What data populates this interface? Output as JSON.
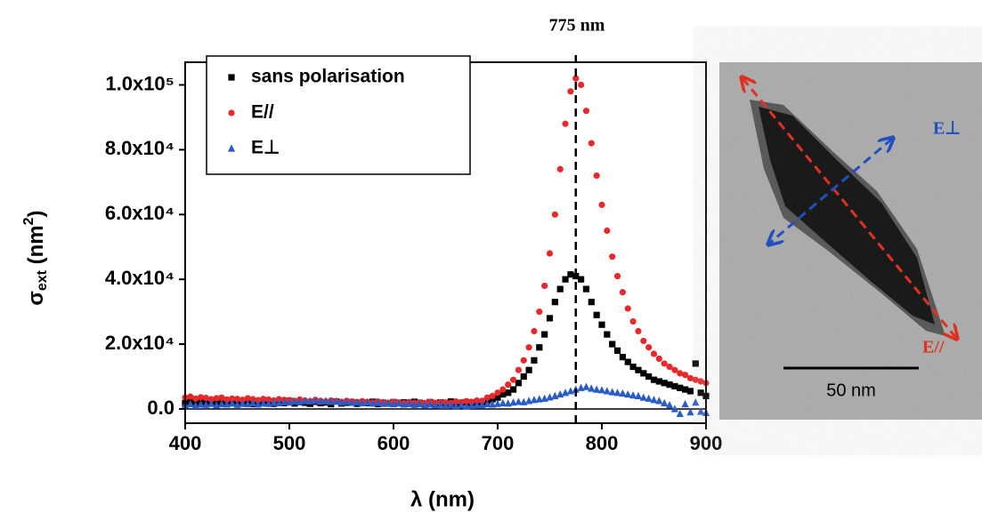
{
  "chart_data": {
    "type": "scatter",
    "x_label": "λ (nm)",
    "y_label_parts": [
      "σ",
      "ext",
      " (nm",
      "2",
      ")"
    ],
    "annotation": {
      "text": "775 nm",
      "x": 775
    },
    "xlim": [
      400,
      900
    ],
    "xticks": [
      400,
      500,
      600,
      700,
      800,
      900
    ],
    "ylim": [
      -4400,
      107000
    ],
    "yticks": [
      {
        "value": 0,
        "label": "0.0"
      },
      {
        "value": 20000,
        "label": "2.0x10⁴"
      },
      {
        "value": 40000,
        "label": "4.0x10⁴"
      },
      {
        "value": 60000,
        "label": "6.0x10⁴"
      },
      {
        "value": 80000,
        "label": "8.0x10⁴"
      },
      {
        "value": 100000,
        "label": "1.0x10⁵"
      }
    ],
    "legend": "top-left",
    "x": [
      400,
      405,
      410,
      415,
      420,
      425,
      430,
      435,
      440,
      445,
      450,
      455,
      460,
      465,
      470,
      475,
      480,
      485,
      490,
      495,
      500,
      505,
      510,
      515,
      520,
      525,
      530,
      535,
      540,
      545,
      550,
      555,
      560,
      565,
      570,
      575,
      580,
      585,
      590,
      595,
      600,
      605,
      610,
      615,
      620,
      625,
      630,
      635,
      640,
      645,
      650,
      655,
      660,
      665,
      670,
      675,
      680,
      685,
      690,
      695,
      700,
      705,
      710,
      715,
      720,
      725,
      730,
      735,
      740,
      745,
      750,
      755,
      760,
      765,
      770,
      775,
      780,
      785,
      790,
      795,
      800,
      805,
      810,
      815,
      820,
      825,
      830,
      835,
      840,
      845,
      850,
      855,
      860,
      865,
      870,
      875,
      880,
      885,
      890,
      895,
      900
    ],
    "series": [
      {
        "name": "sans polarisation",
        "color": "#000000",
        "marker": "square",
        "values": [
          1800,
          2200,
          1500,
          2000,
          1700,
          2300,
          1900,
          1600,
          2100,
          1800,
          2400,
          1700,
          2000,
          1500,
          2200,
          1900,
          2300,
          1600,
          2000,
          1800,
          2500,
          1700,
          2100,
          1900,
          1600,
          2200,
          1800,
          2000,
          1500,
          2300,
          1700,
          1900,
          2100,
          1600,
          2000,
          1800,
          2200,
          1500,
          1900,
          1700,
          2100,
          1800,
          2000,
          1600,
          2200,
          1900,
          1500,
          2100,
          1700,
          2000,
          1800,
          2300,
          1600,
          1900,
          2100,
          1700,
          2000,
          2000,
          2500,
          3000,
          3500,
          4500,
          5000,
          6000,
          8000,
          10000,
          12000,
          15000,
          19000,
          23000,
          28000,
          33000,
          37000,
          40000,
          41500,
          41000,
          40000,
          37000,
          33000,
          29000,
          26000,
          23000,
          20000,
          18000,
          16000,
          14500,
          13000,
          12000,
          11000,
          10000,
          9000,
          8500,
          8000,
          7500,
          7000,
          6500,
          6000,
          5500,
          14000,
          5000,
          4000
        ]
      },
      {
        "name": "E//",
        "color": "#e8282a",
        "marker": "circle",
        "values": [
          3500,
          3800,
          3200,
          3600,
          3400,
          3000,
          3300,
          3500,
          2900,
          3200,
          3100,
          2800,
          3300,
          3000,
          2700,
          3100,
          2900,
          2600,
          3000,
          2800,
          2700,
          2500,
          2900,
          2600,
          2400,
          2800,
          2500,
          2300,
          2600,
          2400,
          2200,
          2500,
          2300,
          2100,
          2400,
          2200,
          2000,
          2300,
          2100,
          1900,
          2200,
          2000,
          1800,
          2100,
          1900,
          2000,
          1800,
          2200,
          1900,
          2100,
          2000,
          1800,
          2300,
          2100,
          2400,
          2200,
          2600,
          2500,
          3500,
          4000,
          5000,
          6000,
          7500,
          9000,
          12000,
          15000,
          19000,
          24000,
          30000,
          38000,
          48000,
          60000,
          74000,
          88000,
          98000,
          102000,
          100000,
          92000,
          82000,
          72000,
          63000,
          55000,
          47000,
          41000,
          36000,
          31000,
          27000,
          24000,
          21000,
          19000,
          17000,
          15500,
          14000,
          13000,
          12000,
          11000,
          10500,
          9500,
          9000,
          8500,
          8000
        ]
      },
      {
        "name": "E⊥",
        "color": "#2a5cc8",
        "marker": "triangle",
        "values": [
          1200,
          1500,
          1000,
          1400,
          1300,
          1600,
          1100,
          1500,
          1400,
          1700,
          1300,
          1600,
          1500,
          1800,
          1400,
          1700,
          1600,
          1900,
          1800,
          2100,
          2000,
          2300,
          2200,
          2500,
          2400,
          2600,
          2300,
          2500,
          2200,
          2400,
          2000,
          2200,
          1900,
          2100,
          1800,
          2000,
          1700,
          1900,
          1600,
          1800,
          1500,
          1700,
          1400,
          1600,
          1300,
          1500,
          1200,
          1400,
          1100,
          1300,
          1000,
          1200,
          900,
          1100,
          800,
          1000,
          1200,
          1200,
          1500,
          1400,
          1600,
          1800,
          1700,
          2000,
          2200,
          2100,
          2500,
          2800,
          3000,
          3200,
          3600,
          4000,
          4500,
          5000,
          5500,
          6000,
          6500,
          6800,
          6300,
          6000,
          5800,
          5500,
          5200,
          5000,
          4800,
          4500,
          4200,
          4000,
          3500,
          3200,
          2800,
          2500,
          1800,
          1200,
          0,
          -1500,
          1500,
          -1000,
          2000,
          -800,
          -1200
        ]
      }
    ]
  },
  "image": {
    "labels": {
      "perp": "E⊥",
      "par": "E//",
      "scale": "50 nm"
    }
  }
}
